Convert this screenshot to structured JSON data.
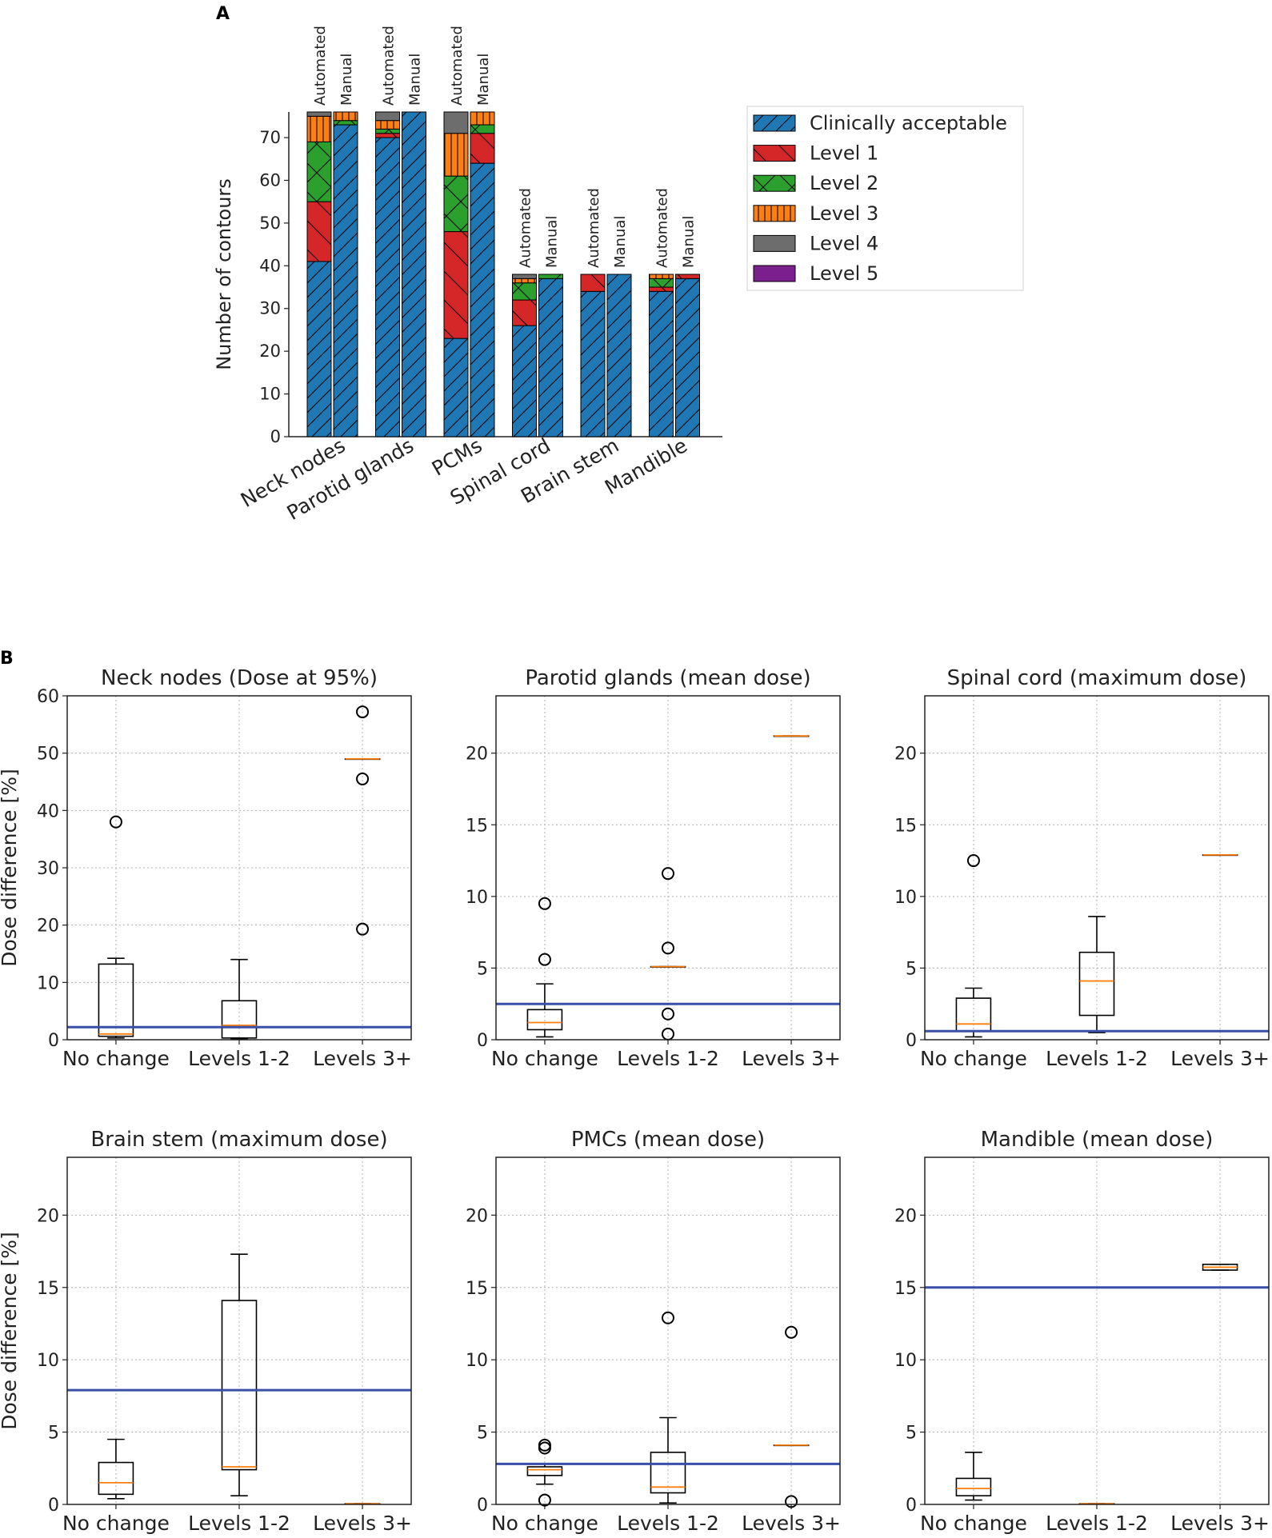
{
  "panel_labels": {
    "a": "A",
    "b": "B"
  },
  "colors": {
    "Clinically acceptable": "#1f77b4",
    "Level 1": "#d62728",
    "Level 2": "#2ca02c",
    "Level 3": "#ff7f0e",
    "Level 4": "#6d6d6d",
    "Level 5": "#7b1f8e",
    "median": "#ff7f0e",
    "reference": "#3a4fa8"
  },
  "chart_data": [
    {
      "type": "bar",
      "id": "A",
      "title": "",
      "xlabel": "",
      "ylabel": "Number of contours",
      "ylim": [
        0,
        76
      ],
      "yticks": [
        0,
        10,
        20,
        30,
        40,
        50,
        60,
        70
      ],
      "categories": [
        "Neck nodes",
        "Parotid glands",
        "PCMs",
        "Spinal cord",
        "Brain stem",
        "Mandible"
      ],
      "subgroups": [
        "Automated",
        "Manual"
      ],
      "legend": [
        "Clinically acceptable",
        "Level 1",
        "Level 2",
        "Level 3",
        "Level 4",
        "Level 5"
      ],
      "legend_position": "right",
      "stacks": [
        [
          {
            "Clinically acceptable": 41,
            "Level 1": 14,
            "Level 2": 14,
            "Level 3": 6,
            "Level 4": 1,
            "Level 5": 0
          },
          {
            "Clinically acceptable": 73,
            "Level 1": 0,
            "Level 2": 1,
            "Level 3": 2,
            "Level 4": 0,
            "Level 5": 0
          }
        ],
        [
          {
            "Clinically acceptable": 70,
            "Level 1": 1,
            "Level 2": 1,
            "Level 3": 2,
            "Level 4": 2,
            "Level 5": 0
          },
          {
            "Clinically acceptable": 76,
            "Level 1": 0,
            "Level 2": 0,
            "Level 3": 0,
            "Level 4": 0,
            "Level 5": 0
          }
        ],
        [
          {
            "Clinically acceptable": 23,
            "Level 1": 25,
            "Level 2": 13,
            "Level 3": 10,
            "Level 4": 5,
            "Level 5": 0
          },
          {
            "Clinically acceptable": 64,
            "Level 1": 7,
            "Level 2": 2,
            "Level 3": 3,
            "Level 4": 0,
            "Level 5": 0
          }
        ],
        [
          {
            "Clinically acceptable": 26,
            "Level 1": 6,
            "Level 2": 4,
            "Level 3": 1,
            "Level 4": 1,
            "Level 5": 0
          },
          {
            "Clinically acceptable": 37,
            "Level 1": 0,
            "Level 2": 1,
            "Level 3": 0,
            "Level 4": 0,
            "Level 5": 0
          }
        ],
        [
          {
            "Clinically acceptable": 34,
            "Level 1": 4,
            "Level 2": 0,
            "Level 3": 0,
            "Level 4": 0,
            "Level 5": 0
          },
          {
            "Clinically acceptable": 38,
            "Level 1": 0,
            "Level 2": 0,
            "Level 3": 0,
            "Level 4": 0,
            "Level 5": 0
          }
        ],
        [
          {
            "Clinically acceptable": 34,
            "Level 1": 1,
            "Level 2": 2,
            "Level 3": 1,
            "Level 4": 0,
            "Level 5": 0
          },
          {
            "Clinically acceptable": 37,
            "Level 1": 1,
            "Level 2": 0,
            "Level 3": 0,
            "Level 4": 0,
            "Level 5": 0
          }
        ]
      ]
    },
    {
      "type": "box",
      "id": "B1",
      "title": "Neck nodes (Dose at 95%)",
      "ylabel": "Dose difference [%]",
      "categories": [
        "No change",
        "Levels 1-2",
        "Levels 3+"
      ],
      "ylim": [
        0,
        60
      ],
      "yticks": [
        0,
        10,
        20,
        30,
        40,
        50,
        60
      ],
      "reference": 2.2,
      "boxes": [
        {
          "q1": 0.6,
          "median": 1.0,
          "q3": 13.2,
          "whislo": 0.3,
          "whishi": 14.2,
          "fliers": [
            38.0
          ]
        },
        {
          "q1": 0.3,
          "median": 2.5,
          "q3": 6.8,
          "whislo": 0.1,
          "whishi": 14.0,
          "fliers": []
        },
        {
          "q1": 49.0,
          "median": 49.0,
          "q3": 49.0,
          "whislo": 49.0,
          "whishi": 49.0,
          "fliers": [
            57.2,
            45.5,
            19.3
          ]
        }
      ]
    },
    {
      "type": "box",
      "id": "B2",
      "title": "Parotid glands (mean dose)",
      "ylabel": "",
      "categories": [
        "No change",
        "Levels 1-2",
        "Levels 3+"
      ],
      "ylim": [
        0,
        24
      ],
      "yticks": [
        0,
        5,
        10,
        15,
        20
      ],
      "reference": 2.5,
      "boxes": [
        {
          "q1": 0.7,
          "median": 1.2,
          "q3": 2.1,
          "whislo": 0.2,
          "whishi": 3.9,
          "fliers": [
            9.5,
            5.6
          ]
        },
        {
          "q1": 5.1,
          "median": 5.1,
          "q3": 5.1,
          "whislo": 5.1,
          "whishi": 5.1,
          "fliers": [
            11.6,
            6.4,
            1.8,
            0.4
          ]
        },
        {
          "q1": 21.2,
          "median": 21.2,
          "q3": 21.2,
          "whislo": 21.2,
          "whishi": 21.2,
          "fliers": []
        }
      ]
    },
    {
      "type": "box",
      "id": "B3",
      "title": "Spinal cord (maximum dose)",
      "ylabel": "",
      "categories": [
        "No change",
        "Levels 1-2",
        "Levels 3+"
      ],
      "ylim": [
        0,
        24
      ],
      "yticks": [
        0,
        5,
        10,
        15,
        20
      ],
      "reference": 0.6,
      "boxes": [
        {
          "q1": 0.6,
          "median": 1.1,
          "q3": 2.9,
          "whislo": 0.2,
          "whishi": 3.6,
          "fliers": [
            12.5
          ]
        },
        {
          "q1": 1.7,
          "median": 4.1,
          "q3": 6.1,
          "whislo": 0.5,
          "whishi": 8.6,
          "fliers": []
        },
        {
          "q1": 12.9,
          "median": 12.9,
          "q3": 12.9,
          "whislo": 12.9,
          "whishi": 12.9,
          "fliers": []
        }
      ]
    },
    {
      "type": "box",
      "id": "B4",
      "title": "Brain stem (maximum dose)",
      "ylabel": "Dose difference [%]",
      "categories": [
        "No change",
        "Levels 1-2",
        "Levels 3+"
      ],
      "ylim": [
        0,
        24
      ],
      "yticks": [
        0,
        5,
        10,
        15,
        20
      ],
      "reference": 7.9,
      "boxes": [
        {
          "q1": 0.7,
          "median": 1.5,
          "q3": 2.9,
          "whislo": 0.4,
          "whishi": 4.5,
          "fliers": []
        },
        {
          "q1": 2.4,
          "median": 2.6,
          "q3": 14.1,
          "whislo": 0.6,
          "whishi": 17.3,
          "fliers": []
        },
        {
          "q1": 0.05,
          "median": 0.05,
          "q3": 0.05,
          "whislo": 0.05,
          "whishi": 0.05,
          "fliers": []
        }
      ]
    },
    {
      "type": "box",
      "id": "B5",
      "title": "PMCs (mean dose)",
      "ylabel": "",
      "categories": [
        "No change",
        "Levels 1-2",
        "Levels 3+"
      ],
      "ylim": [
        0,
        24
      ],
      "yticks": [
        0,
        5,
        10,
        15,
        20
      ],
      "reference": 2.8,
      "boxes": [
        {
          "q1": 2.0,
          "median": 2.4,
          "q3": 2.6,
          "whislo": 1.4,
          "whishi": 2.8,
          "fliers": [
            4.1,
            3.9,
            0.3
          ]
        },
        {
          "q1": 0.8,
          "median": 1.2,
          "q3": 3.6,
          "whislo": 0.1,
          "whishi": 6.0,
          "fliers": [
            12.9
          ]
        },
        {
          "q1": 4.1,
          "median": 4.1,
          "q3": 4.1,
          "whislo": 4.1,
          "whishi": 4.1,
          "fliers": [
            11.9,
            0.2
          ]
        }
      ]
    },
    {
      "type": "box",
      "id": "B6",
      "title": "Mandible (mean dose)",
      "ylabel": "",
      "categories": [
        "No change",
        "Levels 1-2",
        "Levels 3+"
      ],
      "ylim": [
        0,
        24
      ],
      "yticks": [
        0,
        5,
        10,
        15,
        20
      ],
      "reference": 15.0,
      "boxes": [
        {
          "q1": 0.6,
          "median": 1.1,
          "q3": 1.8,
          "whislo": 0.3,
          "whishi": 3.6,
          "fliers": []
        },
        {
          "q1": 0.05,
          "median": 0.05,
          "q3": 0.05,
          "whislo": 0.05,
          "whishi": 0.05,
          "fliers": []
        },
        {
          "q1": 16.2,
          "median": 16.4,
          "q3": 16.6,
          "whislo": 16.2,
          "whishi": 16.6,
          "fliers": []
        }
      ]
    }
  ]
}
